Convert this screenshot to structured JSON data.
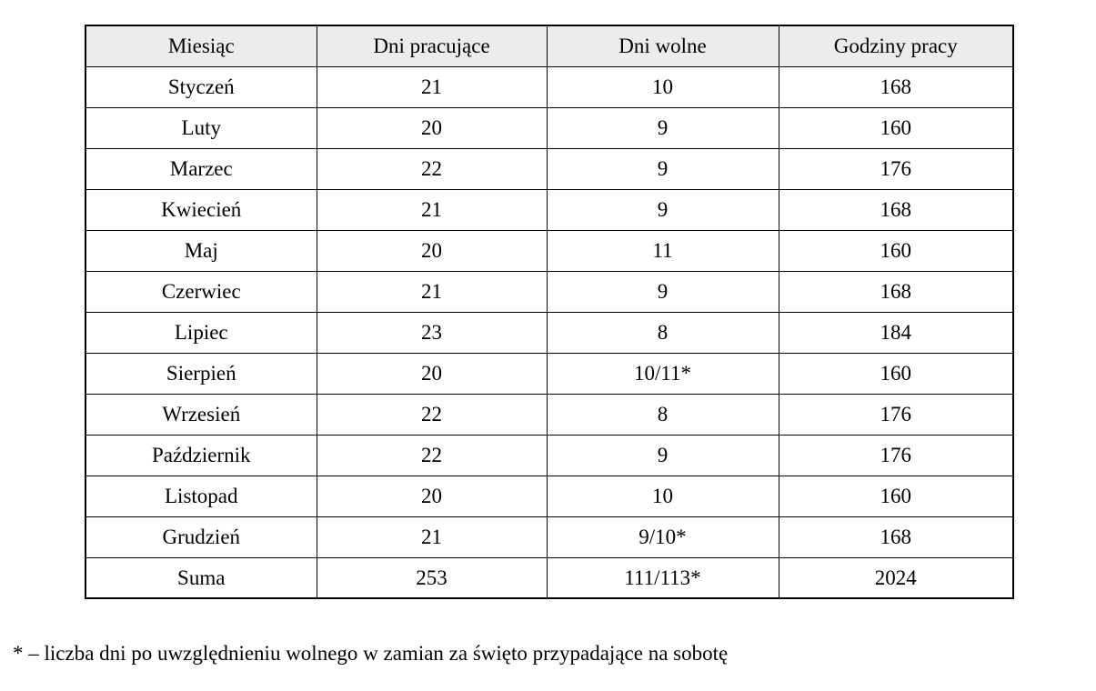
{
  "table": {
    "headers": [
      "Miesiąc",
      "Dni pracujące",
      "Dni wolne",
      "Godziny pracy"
    ],
    "rows": [
      {
        "month": "Styczeń",
        "working_days": "21",
        "free_days": "10",
        "work_hours": "168"
      },
      {
        "month": "Luty",
        "working_days": "20",
        "free_days": "9",
        "work_hours": "160"
      },
      {
        "month": "Marzec",
        "working_days": "22",
        "free_days": "9",
        "work_hours": "176"
      },
      {
        "month": "Kwiecień",
        "working_days": "21",
        "free_days": "9",
        "work_hours": "168"
      },
      {
        "month": "Maj",
        "working_days": "20",
        "free_days": "11",
        "work_hours": "160"
      },
      {
        "month": "Czerwiec",
        "working_days": "21",
        "free_days": "9",
        "work_hours": "168"
      },
      {
        "month": "Lipiec",
        "working_days": "23",
        "free_days": "8",
        "work_hours": "184"
      },
      {
        "month": "Sierpień",
        "working_days": "20",
        "free_days": "10/11*",
        "work_hours": "160"
      },
      {
        "month": "Wrzesień",
        "working_days": "22",
        "free_days": "8",
        "work_hours": "176"
      },
      {
        "month": "Październik",
        "working_days": "22",
        "free_days": "9",
        "work_hours": "176"
      },
      {
        "month": "Listopad",
        "working_days": "20",
        "free_days": "10",
        "work_hours": "160"
      },
      {
        "month": "Grudzień",
        "working_days": "21",
        "free_days": "9/10*",
        "work_hours": "168"
      },
      {
        "month": "Suma",
        "working_days": "253",
        "free_days": "111/113*",
        "work_hours": "2024"
      }
    ]
  },
  "footnote": "* – liczba dni po uwzględnieniu wolnego w zamian za święto przypadające na sobotę",
  "colors": {
    "header_bg": "#ececec",
    "border": "#000000",
    "text": "#000000"
  }
}
